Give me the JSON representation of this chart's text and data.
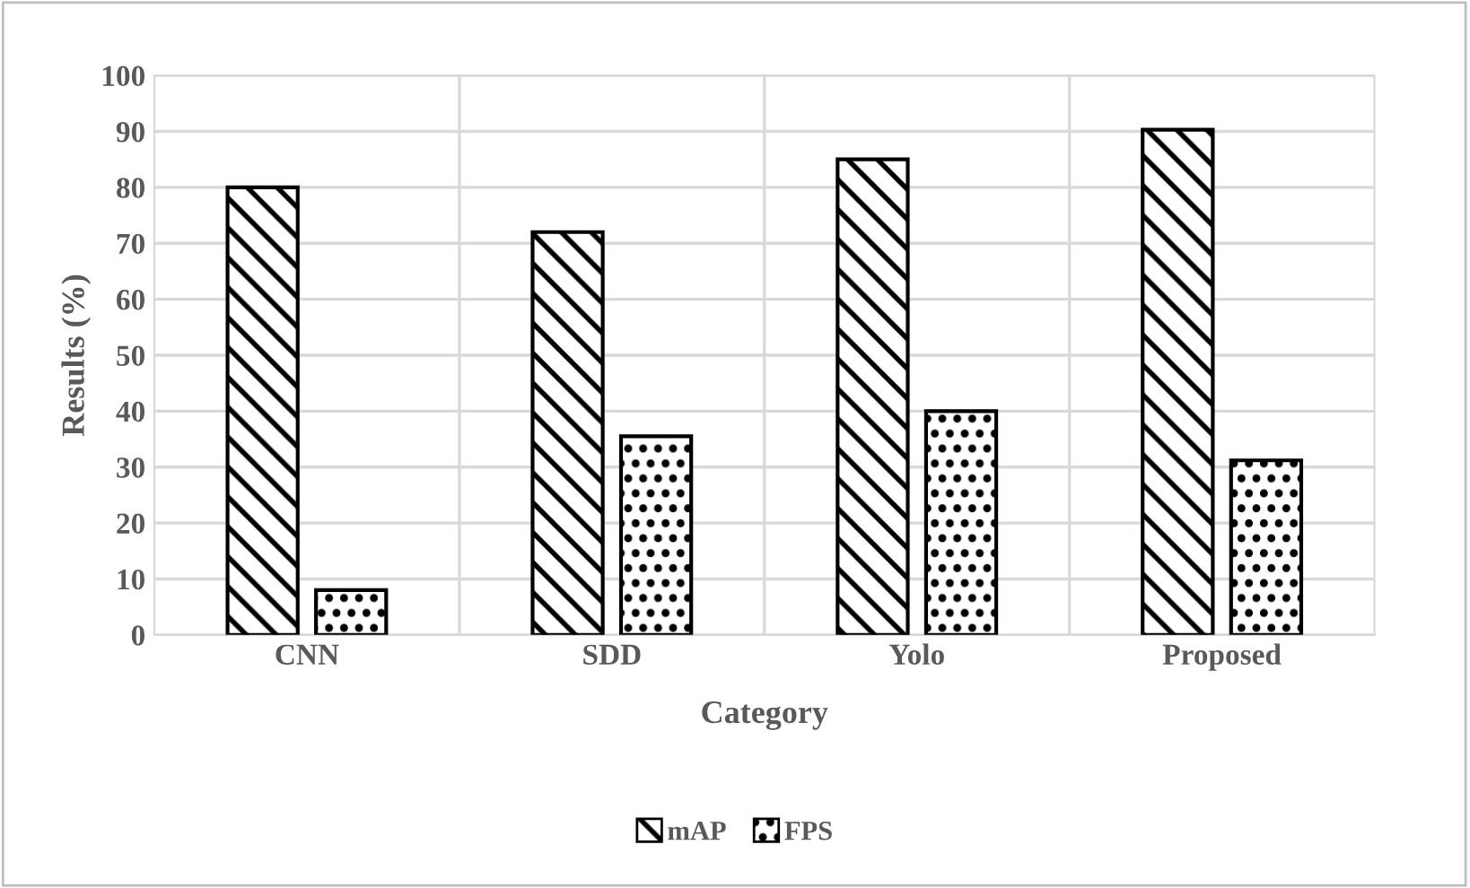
{
  "chart_data": {
    "type": "bar",
    "xlabel": "Category",
    "ylabel": "Results (%)",
    "categories": [
      "CNN",
      "SDD",
      "Yolo",
      "Proposed"
    ],
    "series": [
      {
        "name": "mAP",
        "color": "#000000",
        "values": [
          80,
          72,
          85,
          90.3
        ]
      },
      {
        "name": "FPS",
        "color": "#000000",
        "values": [
          8,
          35.5,
          40,
          31.2
        ]
      }
    ],
    "ylim": [
      0,
      100
    ],
    "yticks": [
      0,
      10,
      20,
      30,
      40,
      50,
      60,
      70,
      80,
      90,
      100
    ],
    "grid": true,
    "legend": "bottom"
  }
}
